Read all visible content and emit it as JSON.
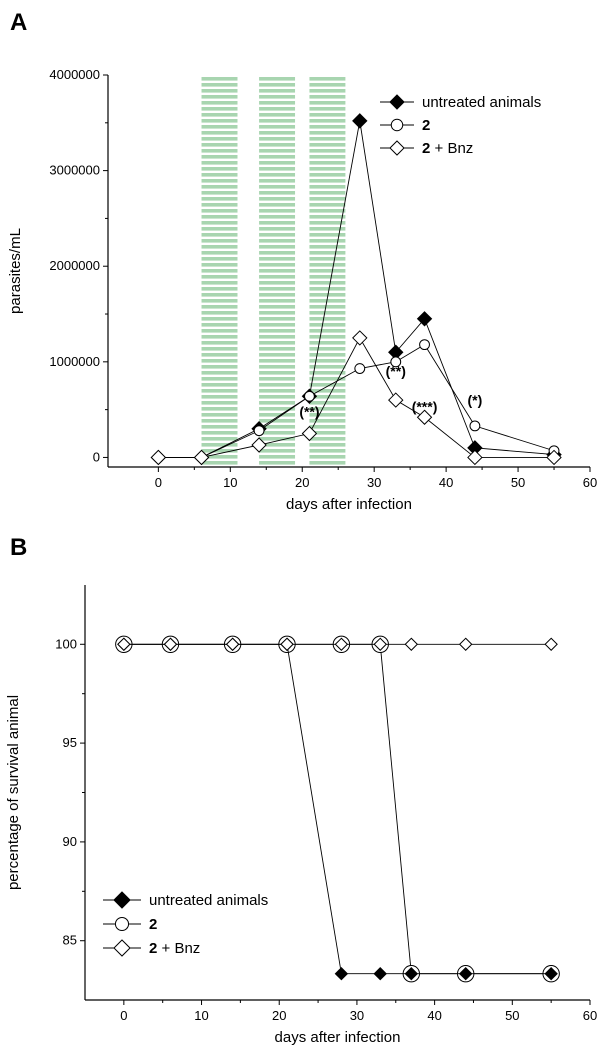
{
  "panels": {
    "a_letter": "A",
    "b_letter": "B"
  },
  "chart_data": [
    {
      "id": "A",
      "type": "line",
      "xlabel": "days after infection",
      "ylabel": "parasites/mL",
      "xlim": [
        -7,
        60
      ],
      "ylim": [
        -100000,
        4000000
      ],
      "xticks": [
        0,
        10,
        20,
        30,
        40,
        50,
        60
      ],
      "yticks": [
        0,
        1000000,
        2000000,
        3000000,
        4000000
      ],
      "ytick_labels": [
        "0",
        "1000000",
        "2000000",
        "3000000",
        "4000000"
      ],
      "treatment_periods": [
        [
          6,
          11
        ],
        [
          14,
          19
        ],
        [
          21,
          26
        ]
      ],
      "treatment_color": "#a8d5b0",
      "legend_position": "top-right",
      "series": [
        {
          "name": "untreated animals",
          "marker": "filled-diamond",
          "x": [
            0,
            6,
            14,
            21,
            28,
            33,
            37,
            44,
            55
          ],
          "y": [
            0,
            0,
            300000,
            640000,
            3520000,
            1100000,
            1450000,
            100000,
            30000
          ]
        },
        {
          "name_bold": "2",
          "name": "",
          "marker": "open-circle",
          "x": [
            0,
            6,
            14,
            21,
            28,
            33,
            37,
            44,
            55
          ],
          "y": [
            0,
            0,
            280000,
            640000,
            930000,
            1000000,
            1180000,
            330000,
            70000
          ]
        },
        {
          "name_bold": "2",
          "name": " + Bnz",
          "marker": "open-diamond",
          "x": [
            0,
            6,
            14,
            21,
            28,
            33,
            37,
            44,
            55
          ],
          "y": [
            0,
            0,
            130000,
            250000,
            1250000,
            600000,
            420000,
            0,
            0
          ]
        }
      ],
      "annotations": [
        {
          "text": "(**)",
          "x": 21,
          "y": 430000
        },
        {
          "text": "(**)",
          "x": 33,
          "y": 850000
        },
        {
          "text": "(***)",
          "x": 37,
          "y": 480000
        },
        {
          "text": "(*)",
          "x": 44,
          "y": 550000
        }
      ]
    },
    {
      "id": "B",
      "type": "line",
      "xlabel": "days after infection",
      "ylabel": "percentage of survival animal",
      "xlim": [
        -5,
        60
      ],
      "ylim": [
        82,
        103
      ],
      "xticks": [
        0,
        10,
        20,
        30,
        40,
        50,
        60
      ],
      "yticks": [
        85,
        90,
        95,
        100
      ],
      "legend_position": "bottom-left",
      "series": [
        {
          "name": "untreated animals",
          "marker": "filled-diamond",
          "x": [
            0,
            6,
            14,
            21,
            28,
            33,
            37,
            44,
            55
          ],
          "y": [
            100,
            100,
            100,
            100,
            83.33,
            83.33,
            83.33,
            83.33,
            83.33
          ]
        },
        {
          "name_bold": "2",
          "name": "",
          "marker": "open-circle",
          "x": [
            0,
            6,
            14,
            21,
            28,
            33,
            37,
            44,
            55
          ],
          "y": [
            100,
            100,
            100,
            100,
            100,
            100,
            83.33,
            83.33,
            83.33
          ]
        },
        {
          "name_bold": "2",
          "name": " + Bnz",
          "marker": "open-diamond",
          "x": [
            0,
            6,
            14,
            21,
            28,
            33,
            37,
            44,
            55
          ],
          "y": [
            100,
            100,
            100,
            100,
            100,
            100,
            100,
            100,
            100
          ]
        }
      ]
    }
  ]
}
